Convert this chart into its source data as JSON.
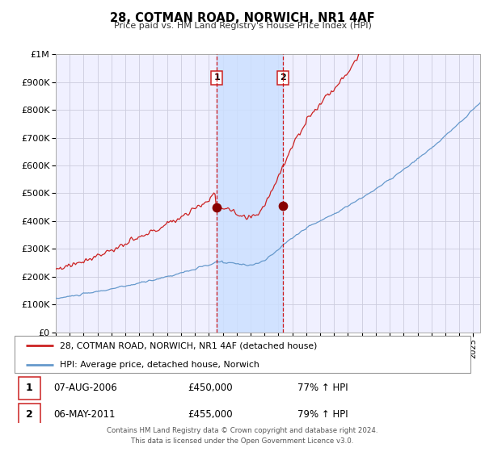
{
  "title": "28, COTMAN ROAD, NORWICH, NR1 4AF",
  "subtitle": "Price paid vs. HM Land Registry's House Price Index (HPI)",
  "legend_line1": "28, COTMAN ROAD, NORWICH, NR1 4AF (detached house)",
  "legend_line2": "HPI: Average price, detached house, Norwich",
  "transaction1_date": "07-AUG-2006",
  "transaction1_price": "£450,000",
  "transaction1_hpi": "77% ↑ HPI",
  "transaction2_date": "06-MAY-2011",
  "transaction2_price": "£455,000",
  "transaction2_hpi": "79% ↑ HPI",
  "footer": "Contains HM Land Registry data © Crown copyright and database right 2024.\nThis data is licensed under the Open Government Licence v3.0.",
  "hpi_color": "#6699cc",
  "price_color": "#cc2222",
  "marker_color": "#880000",
  "background_color": "#ffffff",
  "plot_background": "#f0f0ff",
  "grid_color": "#ccccdd",
  "shade_color": "#cce0ff",
  "ylim": [
    0,
    1000000
  ],
  "xlim_start": 1995.0,
  "xlim_end": 2025.5,
  "t1_x": 2006.58,
  "t1_y": 450000,
  "t2_x": 2011.33,
  "t2_y": 455000,
  "shade_x1": 2006.58,
  "shade_x2": 2011.33
}
